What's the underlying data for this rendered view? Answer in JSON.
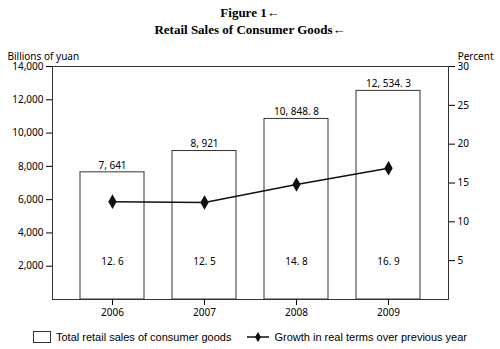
{
  "chart_data": {
    "type": "bar",
    "title": "Figure 1←",
    "subtitle": "Retail Sales of Consumer Goods←",
    "categories": [
      "2006",
      "2007",
      "2008",
      "2009"
    ],
    "series": [
      {
        "name": "Total retail sales of consumer goods",
        "type": "bar",
        "color": "#ffffff",
        "values": [
          7641,
          8921,
          10848.8,
          12534.3
        ],
        "value_labels": [
          "7, 641",
          "8, 921",
          "10, 848. 8",
          "12, 534. 3"
        ]
      },
      {
        "name": "Growth in real terms over previous year",
        "type": "line",
        "axis": "y2",
        "color": "#111111",
        "marker": "diamond",
        "values": [
          12.6,
          12.5,
          14.8,
          16.9
        ],
        "value_labels": [
          "12. 6",
          "12. 5",
          "14. 8",
          "16. 9"
        ]
      }
    ],
    "ylabel": "Billions of yuan",
    "y2label": "Percent",
    "ylim": [
      0,
      14000
    ],
    "yticks": [
      2000,
      4000,
      6000,
      8000,
      10000,
      12000,
      14000
    ],
    "y2lim": [
      0,
      30
    ],
    "y2ticks": [
      5,
      10,
      15,
      20,
      25,
      30
    ],
    "data_labels": true,
    "legend": "bottom",
    "grid": false
  }
}
